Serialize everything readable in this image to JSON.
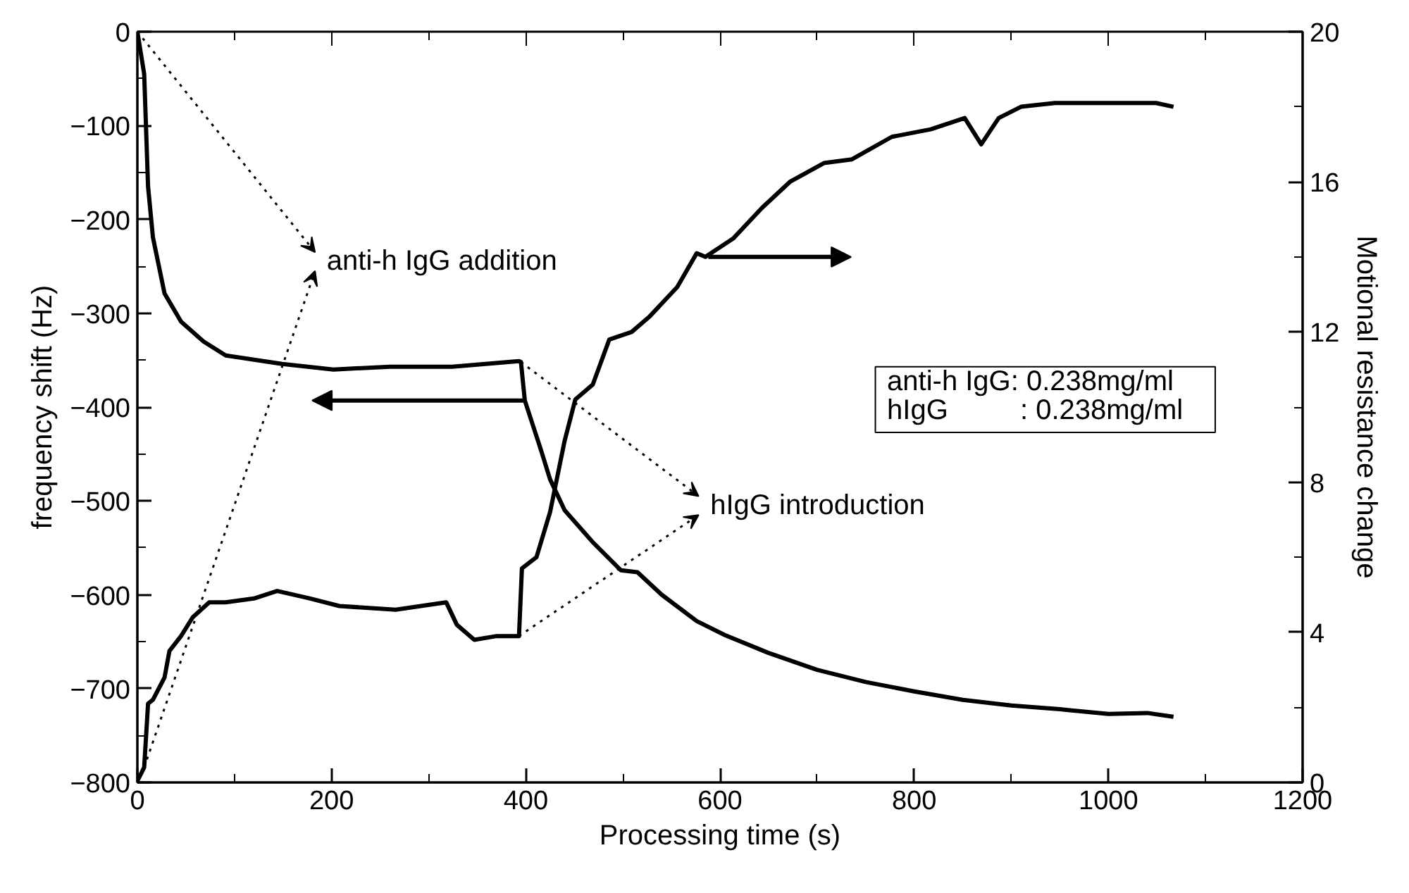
{
  "chart_data": {
    "type": "line",
    "xlabel": "Processing time (s)",
    "ylabel": "frequency shift (Hz)",
    "y2label": "Motional resistance change",
    "series": [
      {
        "color": "#000000",
        "x": [
          0,
          7,
          11,
          16,
          28,
          45,
          68,
          91,
          149,
          202,
          260,
          324,
          393,
          395,
          399,
          416,
          425,
          440,
          469,
          498,
          515,
          540,
          576,
          605,
          650,
          700,
          750,
          800,
          850,
          900,
          950,
          1000,
          1040,
          1067
        ],
        "values": [
          0,
          -45,
          -165,
          -219,
          -279,
          -309,
          -330,
          -345,
          -354,
          -360,
          -357,
          -357,
          -351,
          -352,
          -393,
          -447,
          -477,
          -510,
          -544,
          -574,
          -576,
          -600,
          -628,
          -643,
          -662,
          -680,
          -693,
          -703,
          -712,
          -718,
          -722,
          -727,
          -726,
          -730
        ]
      },
      {
        "color": "#000000",
        "axis": "y2",
        "x": [
          0,
          7,
          11,
          16,
          28,
          33,
          45,
          57,
          74,
          91,
          120,
          144,
          178,
          208,
          266,
          318,
          329,
          347,
          370,
          393,
          396,
          411,
          425,
          440,
          451,
          469,
          486,
          509,
          527,
          556,
          576,
          585,
          614,
          643,
          672,
          707,
          736,
          777,
          817,
          852,
          869,
          887,
          910,
          945,
          991,
          1049,
          1067
        ],
        "values": [
          0.04,
          0.4,
          2.1,
          2.2,
          2.8,
          3.5,
          3.9,
          4.4,
          4.8,
          4.8,
          4.9,
          5.1,
          4.9,
          4.7,
          4.6,
          4.8,
          4.2,
          3.8,
          3.9,
          3.9,
          5.7,
          6.0,
          7.2,
          9.1,
          10.2,
          10.6,
          11.8,
          12.0,
          12.4,
          13.2,
          14.1,
          14.0,
          14.5,
          15.3,
          16.0,
          16.5,
          16.6,
          17.2,
          17.4,
          17.7,
          17.0,
          17.7,
          18.0,
          18.1,
          18.1,
          18.1,
          18.0
        ]
      }
    ],
    "xlim": [
      0,
      1200
    ],
    "xticks": [
      0,
      200,
      400,
      600,
      800,
      1000,
      1200
    ],
    "ylim": [
      -800,
      0
    ],
    "yticks": [
      -800,
      -700,
      -600,
      -500,
      -400,
      -300,
      -200,
      -100,
      0
    ],
    "y2lim": [
      0,
      20
    ],
    "y2ticks": [
      0,
      4,
      8,
      12,
      16,
      20
    ],
    "annotations": [
      "anti-h IgG addition",
      "hIgG introduction",
      "anti-h IgG: 0.238mg/ml",
      "hIgG       : 0.238mg/ml"
    ],
    "grid": false,
    "marker": "none",
    "line_style": "solid"
  }
}
